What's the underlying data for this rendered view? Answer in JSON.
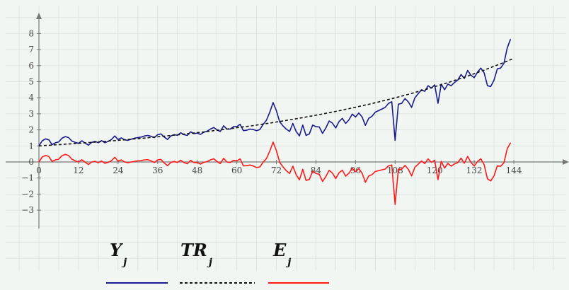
{
  "chart_data": {
    "type": "line",
    "x_ticks": [
      0,
      12,
      24,
      36,
      48,
      60,
      72,
      84,
      96,
      108,
      120,
      132,
      144
    ],
    "y_ticks": [
      -3,
      -2,
      -1,
      0,
      1,
      2,
      3,
      4,
      5,
      6,
      7,
      8
    ],
    "xlim": [
      0,
      150
    ],
    "ylim": [
      -4.3,
      9.0
    ],
    "grid": true,
    "legend_position": "bottom-left",
    "colors": {
      "Y": "#1a1a8c",
      "TR": "#111111",
      "E": "#ff1a1a",
      "background": "#f2f6f3",
      "grid": "#dde5e0"
    },
    "series": [
      {
        "name": "Y_j",
        "values": [
          1.0,
          1.32,
          1.44,
          1.38,
          1.08,
          1.2,
          1.25,
          1.48,
          1.58,
          1.52,
          1.3,
          1.22,
          1.16,
          1.32,
          1.18,
          1.05,
          1.22,
          1.28,
          1.2,
          1.33,
          1.2,
          1.28,
          1.4,
          1.62,
          1.4,
          1.5,
          1.38,
          1.35,
          1.42,
          1.48,
          1.52,
          1.55,
          1.62,
          1.65,
          1.6,
          1.52,
          1.7,
          1.75,
          1.55,
          1.4,
          1.62,
          1.7,
          1.66,
          1.82,
          1.7,
          1.65,
          1.88,
          1.76,
          1.8,
          1.72,
          1.85,
          1.92,
          2.05,
          2.15,
          2.0,
          1.9,
          2.25,
          2.05,
          2.05,
          2.2,
          2.2,
          2.35,
          1.95,
          1.98,
          2.05,
          2.02,
          1.95,
          2.02,
          2.35,
          2.6,
          3.1,
          3.7,
          3.2,
          2.5,
          2.25,
          2.05,
          1.9,
          2.4,
          1.9,
          1.62,
          2.3,
          1.65,
          1.75,
          2.3,
          2.2,
          2.18,
          1.78,
          2.12,
          2.55,
          2.42,
          2.12,
          2.52,
          2.72,
          2.4,
          2.62,
          2.98,
          2.8,
          3.05,
          2.8,
          2.28,
          2.72,
          2.85,
          3.1,
          3.2,
          3.3,
          3.4,
          3.65,
          3.75,
          1.35,
          3.6,
          3.65,
          3.95,
          3.75,
          3.4,
          4.0,
          4.25,
          4.5,
          4.4,
          4.75,
          4.6,
          4.8,
          3.65,
          4.85,
          4.5,
          4.85,
          4.75,
          4.95,
          5.1,
          5.45,
          5.2,
          5.7,
          5.4,
          5.25,
          5.6,
          5.85,
          5.55,
          4.75,
          4.7,
          5.1,
          5.8,
          5.85,
          6.15,
          7.1,
          7.65
        ],
        "style": "solid"
      },
      {
        "name": "TR_j",
        "values": [
          1.0,
          1.01,
          1.03,
          1.04,
          1.05,
          1.07,
          1.08,
          1.09,
          1.11,
          1.12,
          1.13,
          1.15,
          1.16,
          1.18,
          1.19,
          1.21,
          1.22,
          1.24,
          1.25,
          1.27,
          1.28,
          1.3,
          1.32,
          1.33,
          1.35,
          1.37,
          1.38,
          1.4,
          1.42,
          1.44,
          1.45,
          1.47,
          1.49,
          1.51,
          1.53,
          1.55,
          1.57,
          1.59,
          1.61,
          1.63,
          1.65,
          1.67,
          1.69,
          1.71,
          1.74,
          1.76,
          1.78,
          1.8,
          1.83,
          1.85,
          1.87,
          1.9,
          1.92,
          1.95,
          1.97,
          2.0,
          2.02,
          2.05,
          2.08,
          2.1,
          2.13,
          2.16,
          2.19,
          2.21,
          2.24,
          2.27,
          2.3,
          2.33,
          2.36,
          2.39,
          2.42,
          2.46,
          2.49,
          2.52,
          2.55,
          2.59,
          2.62,
          2.66,
          2.69,
          2.73,
          2.76,
          2.8,
          2.84,
          2.87,
          2.91,
          2.95,
          2.99,
          3.03,
          3.07,
          3.11,
          3.15,
          3.19,
          3.23,
          3.28,
          3.32,
          3.37,
          3.41,
          3.46,
          3.5,
          3.55,
          3.59,
          3.64,
          3.69,
          3.74,
          3.79,
          3.84,
          3.89,
          3.94,
          4.0,
          4.05,
          4.1,
          4.16,
          4.21,
          4.27,
          4.33,
          4.39,
          4.44,
          4.5,
          4.56,
          4.62,
          4.69,
          4.75,
          4.81,
          4.88,
          4.94,
          5.01,
          5.08,
          5.14,
          5.21,
          5.28,
          5.35,
          5.43,
          5.5,
          5.57,
          5.65,
          5.72,
          5.8,
          5.88,
          5.96,
          6.04,
          6.12,
          6.2,
          6.28,
          6.37,
          6.45
        ],
        "style": "dashed"
      },
      {
        "name": "E_j",
        "values": [
          0.0,
          0.31,
          0.41,
          0.34,
          0.03,
          0.13,
          0.17,
          0.39,
          0.47,
          0.4,
          0.17,
          0.07,
          0.0,
          0.14,
          -0.01,
          -0.16,
          0.0,
          0.04,
          -0.05,
          0.06,
          -0.08,
          -0.02,
          0.08,
          0.29,
          0.05,
          0.13,
          0.0,
          -0.05,
          0.0,
          0.04,
          0.07,
          0.08,
          0.13,
          0.14,
          0.07,
          -0.03,
          0.13,
          0.16,
          -0.06,
          -0.23,
          -0.03,
          0.03,
          -0.03,
          0.11,
          -0.04,
          -0.11,
          0.1,
          -0.04,
          -0.03,
          -0.13,
          -0.02,
          0.02,
          0.13,
          0.2,
          0.03,
          -0.1,
          0.23,
          0.0,
          -0.03,
          0.1,
          0.07,
          0.19,
          -0.24,
          -0.23,
          -0.19,
          -0.25,
          -0.35,
          -0.31,
          -0.01,
          0.21,
          0.68,
          1.24,
          0.71,
          -0.02,
          -0.3,
          -0.54,
          -0.72,
          -0.26,
          -0.79,
          -1.11,
          -0.46,
          -1.15,
          -1.09,
          -0.57,
          -0.71,
          -0.77,
          -1.21,
          -0.91,
          -0.52,
          -0.69,
          -1.03,
          -0.67,
          -0.51,
          -0.88,
          -0.7,
          -0.39,
          -0.61,
          -0.41,
          -0.7,
          -1.27,
          -0.87,
          -0.79,
          -0.59,
          -0.54,
          -0.49,
          -0.44,
          -0.24,
          -0.19,
          -2.65,
          -0.45,
          -0.45,
          -0.21,
          -0.46,
          -0.87,
          -0.33,
          -0.14,
          0.06,
          -0.1,
          0.19,
          -0.02,
          0.11,
          -1.1,
          0.04,
          -0.38,
          -0.09,
          -0.26,
          -0.12,
          -0.04,
          0.24,
          -0.08,
          0.35,
          -0.03,
          -0.25,
          0.03,
          0.2,
          -0.17,
          -1.05,
          -1.18,
          -0.86,
          -0.24,
          -0.27,
          -0.05,
          0.82,
          1.2
        ],
        "style": "solid"
      }
    ]
  },
  "legend": [
    {
      "main": "Y",
      "sub": "j"
    },
    {
      "main": "TR",
      "sub": "j"
    },
    {
      "main": "E",
      "sub": "j"
    }
  ]
}
